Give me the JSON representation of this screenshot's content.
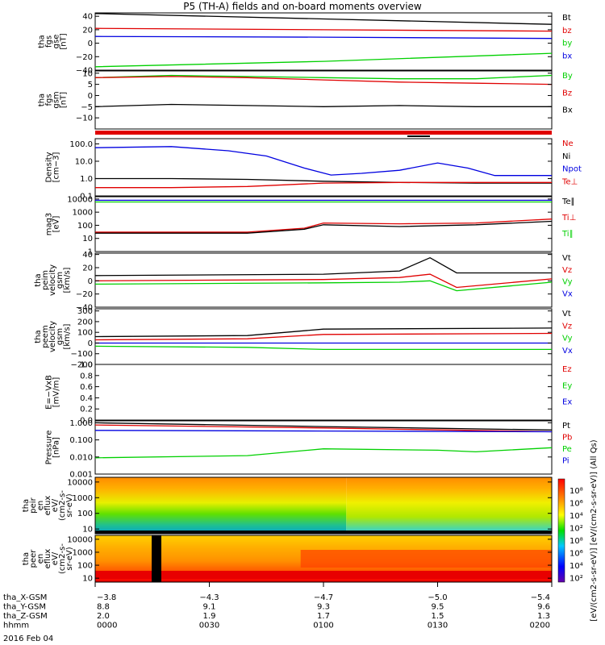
{
  "title": "P5 (TH-A) fields and on-board moments overview",
  "colors": {
    "black": "#000000",
    "red": "#e00000",
    "green": "#00d000",
    "blue": "#0000e0"
  },
  "chart_data": [
    {
      "type": "line",
      "name": "fgs-gse",
      "ylabel": [
        "tha",
        "fgs",
        "gse",
        "[nT]"
      ],
      "ylim": [
        -40,
        45
      ],
      "yticks": [
        "40",
        "20",
        "0",
        "−20",
        "−40"
      ],
      "yticks_v": [
        40,
        20,
        0,
        -20,
        -40
      ],
      "legend": [
        {
          "label": "Bt",
          "color": "black"
        },
        {
          "label": "bz",
          "color": "red"
        },
        {
          "label": "by",
          "color": "green"
        },
        {
          "label": "bx",
          "color": "blue"
        }
      ],
      "series": [
        {
          "color": "black",
          "x": [
            0,
            60,
            120
          ],
          "y": [
            44,
            36,
            28
          ]
        },
        {
          "color": "red",
          "x": [
            0,
            60,
            120
          ],
          "y": [
            22,
            20,
            18
          ]
        },
        {
          "color": "blue",
          "x": [
            0,
            60,
            120
          ],
          "y": [
            10,
            9,
            7
          ]
        },
        {
          "color": "green",
          "x": [
            0,
            60,
            120
          ],
          "y": [
            -35,
            -27,
            -15
          ]
        }
      ]
    },
    {
      "type": "line",
      "name": "fgs-gsm",
      "ylabel": [
        "tha",
        "fgs",
        "gsm",
        "[nT]"
      ],
      "ylim": [
        -15,
        11
      ],
      "yticks": [
        "10",
        "5",
        "0",
        "−5",
        "−10"
      ],
      "yticks_v": [
        10,
        5,
        0,
        -5,
        -10
      ],
      "legend": [
        {
          "label": "By",
          "color": "green"
        },
        {
          "label": "Bz",
          "color": "red"
        },
        {
          "label": "Bx",
          "color": "black"
        }
      ],
      "series": [
        {
          "color": "green",
          "x": [
            0,
            20,
            40,
            60,
            80,
            100,
            120
          ],
          "y": [
            8,
            9,
            8.5,
            8,
            7.5,
            7.5,
            9
          ]
        },
        {
          "color": "red",
          "x": [
            0,
            20,
            40,
            60,
            80,
            100,
            120
          ],
          "y": [
            8,
            8.5,
            8,
            7,
            6,
            5.5,
            5
          ]
        },
        {
          "color": "black",
          "x": [
            0,
            20,
            40,
            60,
            80,
            100,
            120
          ],
          "y": [
            -5,
            -4,
            -4.5,
            -5,
            -4.5,
            -5,
            -5
          ]
        }
      ]
    },
    {
      "type": "line",
      "name": "density",
      "ylabel": [
        "Density",
        "[cm−3]"
      ],
      "yscale": "log",
      "ylim": [
        0.1,
        200
      ],
      "yticks": [
        "100.0",
        "10.0",
        "1.0",
        "0.1"
      ],
      "yticks_v": [
        100,
        10,
        1,
        0.1
      ],
      "legend": [
        {
          "label": "Ne",
          "color": "red"
        },
        {
          "label": "Ni",
          "color": "black"
        },
        {
          "label": "Npot",
          "color": "blue"
        },
        {
          "label": "Te⊥",
          "color": "red"
        }
      ],
      "series": [
        {
          "color": "blue",
          "x": [
            0,
            20,
            35,
            45,
            55,
            62,
            70,
            80,
            90,
            98,
            105,
            120
          ],
          "y": [
            60,
            70,
            40,
            20,
            4,
            1.6,
            2,
            3,
            8,
            4,
            1.5,
            1.5
          ]
        },
        {
          "color": "black",
          "x": [
            0,
            20,
            40,
            60,
            80,
            100,
            120
          ],
          "y": [
            1.0,
            1.0,
            0.9,
            0.7,
            0.6,
            0.55,
            0.55
          ]
        },
        {
          "color": "red",
          "x": [
            0,
            20,
            40,
            60,
            80,
            100,
            120
          ],
          "y": [
            0.3,
            0.3,
            0.35,
            0.55,
            0.6,
            0.6,
            0.6
          ]
        }
      ]
    },
    {
      "type": "line",
      "name": "temperature",
      "ylabel": [
        "mag3",
        "[eV]"
      ],
      "yscale": "log",
      "ylim": [
        1,
        15000
      ],
      "yticks": [
        "10000",
        "1000",
        "100",
        "10",
        "1"
      ],
      "yticks_v": [
        10000,
        1000,
        100,
        10,
        1
      ],
      "legend": [
        {
          "label": "Te∥",
          "color": "black"
        },
        {
          "label": "Ti⊥",
          "color": "red"
        },
        {
          "label": "Ti∥",
          "color": "green"
        }
      ],
      "series": [
        {
          "color": "green",
          "x": [
            0,
            120
          ],
          "y": [
            6000,
            6000
          ]
        },
        {
          "color": "blue",
          "x": [
            0,
            120
          ],
          "y": [
            8000,
            8000
          ]
        },
        {
          "color": "red",
          "x": [
            0,
            40,
            55,
            60,
            80,
            100,
            120
          ],
          "y": [
            30,
            30,
            60,
            150,
            130,
            150,
            300
          ]
        },
        {
          "color": "black",
          "x": [
            0,
            40,
            55,
            60,
            80,
            100,
            120
          ],
          "y": [
            25,
            25,
            50,
            110,
            80,
            110,
            200
          ]
        }
      ]
    },
    {
      "type": "line",
      "name": "peim-velocity",
      "ylabel": [
        "tha",
        "peim",
        "velocity",
        "gsm",
        "[km/s]"
      ],
      "ylim": [
        -40,
        42
      ],
      "yticks": [
        "40",
        "20",
        "0",
        "−20",
        "−40"
      ],
      "yticks_v": [
        40,
        20,
        0,
        -20,
        -40
      ],
      "legend": [
        {
          "label": "Vt",
          "color": "black"
        },
        {
          "label": "Vz",
          "color": "red"
        },
        {
          "label": "Vy",
          "color": "green"
        },
        {
          "label": "Vx",
          "color": "blue"
        }
      ],
      "series": [
        {
          "color": "black",
          "x": [
            0,
            60,
            80,
            88,
            95,
            120
          ],
          "y": [
            8,
            10,
            15,
            35,
            12,
            12
          ]
        },
        {
          "color": "red",
          "x": [
            0,
            60,
            80,
            88,
            95,
            120
          ],
          "y": [
            0,
            2,
            5,
            10,
            -10,
            3
          ]
        },
        {
          "color": "green",
          "x": [
            0,
            60,
            80,
            88,
            95,
            120
          ],
          "y": [
            -5,
            -3,
            -2,
            0,
            -15,
            -2
          ]
        }
      ]
    },
    {
      "type": "line",
      "name": "peem-velocity",
      "ylabel": [
        "tha",
        "peem",
        "velocity",
        "gsm",
        "[km/s]"
      ],
      "ylim": [
        -200,
        320
      ],
      "yticks": [
        "300",
        "200",
        "100",
        "0",
        "−100",
        "−200"
      ],
      "yticks_v": [
        300,
        200,
        100,
        0,
        -100,
        -200
      ],
      "legend": [
        {
          "label": "Vt",
          "color": "black"
        },
        {
          "label": "Vz",
          "color": "red"
        },
        {
          "label": "Vy",
          "color": "green"
        },
        {
          "label": "Vx",
          "color": "blue"
        }
      ],
      "series": [
        {
          "color": "black",
          "x": [
            0,
            40,
            60,
            120
          ],
          "y": [
            60,
            70,
            130,
            140
          ]
        },
        {
          "color": "red",
          "x": [
            0,
            40,
            60,
            120
          ],
          "y": [
            30,
            40,
            80,
            90
          ]
        },
        {
          "color": "blue",
          "x": [
            0,
            40,
            60,
            120
          ],
          "y": [
            0,
            0,
            0,
            0
          ]
        },
        {
          "color": "green",
          "x": [
            0,
            40,
            60,
            120
          ],
          "y": [
            -30,
            -40,
            -60,
            -60
          ]
        }
      ]
    },
    {
      "type": "line",
      "name": "efield",
      "ylabel": [
        "E=−VxB",
        "[mV/m]"
      ],
      "ylim": [
        0,
        1
      ],
      "yticks": [
        "1.0",
        "0.8",
        "0.6",
        "0.4",
        "0.2",
        "0.0"
      ],
      "yticks_v": [
        1.0,
        0.8,
        0.6,
        0.4,
        0.2,
        0.0
      ],
      "legend": [
        {
          "label": "Ez",
          "color": "red"
        },
        {
          "label": "Ey",
          "color": "green"
        },
        {
          "label": "Ex",
          "color": "blue"
        }
      ],
      "series": []
    },
    {
      "type": "line",
      "name": "pressure",
      "ylabel": [
        "Pressure",
        "[nPa]"
      ],
      "yscale": "log",
      "ylim": [
        0.001,
        1.3
      ],
      "yticks": [
        "1.000",
        "0.100",
        "0.010",
        "0.001"
      ],
      "yticks_v": [
        1,
        0.1,
        0.01,
        0.001
      ],
      "legend": [
        {
          "label": "Pt",
          "color": "black"
        },
        {
          "label": "Pb",
          "color": "red"
        },
        {
          "label": "Pe",
          "color": "green"
        },
        {
          "label": "Pi",
          "color": "blue"
        }
      ],
      "series": [
        {
          "color": "black",
          "x": [
            0,
            60,
            120
          ],
          "y": [
            1.0,
            0.6,
            0.38
          ]
        },
        {
          "color": "red",
          "x": [
            0,
            60,
            120
          ],
          "y": [
            0.75,
            0.5,
            0.3
          ]
        },
        {
          "color": "blue",
          "x": [
            0,
            60,
            120
          ],
          "y": [
            0.36,
            0.33,
            0.3
          ]
        },
        {
          "color": "green",
          "x": [
            0,
            40,
            60,
            90,
            100,
            120
          ],
          "y": [
            0.009,
            0.012,
            0.03,
            0.025,
            0.02,
            0.035
          ]
        }
      ]
    },
    {
      "type": "heatmap",
      "name": "peir-en-eflux",
      "ylabel": [
        "tha",
        "peir",
        "en",
        "eflux",
        "eV/",
        "(cm2-s-",
        "sr-eV)"
      ],
      "yscale": "log",
      "ylim": [
        5,
        20000
      ],
      "yticks": [
        "10000",
        "1000",
        "100",
        "10"
      ],
      "yticks_v": [
        10000,
        1000,
        100,
        10
      ]
    },
    {
      "type": "heatmap",
      "name": "peer-en-eflux",
      "ylabel": [
        "tha",
        "peer",
        "en",
        "eflux",
        "eV/",
        "(cm2-s-",
        "sr-eV)"
      ],
      "yscale": "log",
      "ylim": [
        5,
        20000
      ],
      "yticks": [
        "10000",
        "1000",
        "100",
        "10"
      ],
      "yticks_v": [
        10000,
        1000,
        100,
        10
      ]
    }
  ],
  "colorbar": {
    "label": "[eV/(cm2-s-sr-eV)] [eV/(cm2-s-sr-eV)]  (All Qs)",
    "ticks_top": [
      "10⁸",
      "10⁶",
      "10⁴",
      "10²"
    ],
    "ticks_bottom": [
      "10⁸",
      "10⁶",
      "10⁴",
      "10²"
    ]
  },
  "xaxis": {
    "range_min": [
      0,
      120
    ],
    "rows": [
      {
        "label": "tha_X-GSM",
        "values": [
          "−3.8",
          "−4.3",
          "−4.7",
          "−5.0",
          "−5.4"
        ]
      },
      {
        "label": "tha_Y-GSM",
        "values": [
          "8.8",
          "9.1",
          "9.3",
          "9.5",
          "9.6"
        ]
      },
      {
        "label": "tha_Z-GSM",
        "values": [
          "2.0",
          "1.9",
          "1.7",
          "1.5",
          "1.3"
        ]
      },
      {
        "label": "hhmm",
        "values": [
          "0000",
          "0030",
          "0100",
          "0130",
          "0200"
        ]
      }
    ],
    "date": "2016 Feb 04"
  }
}
